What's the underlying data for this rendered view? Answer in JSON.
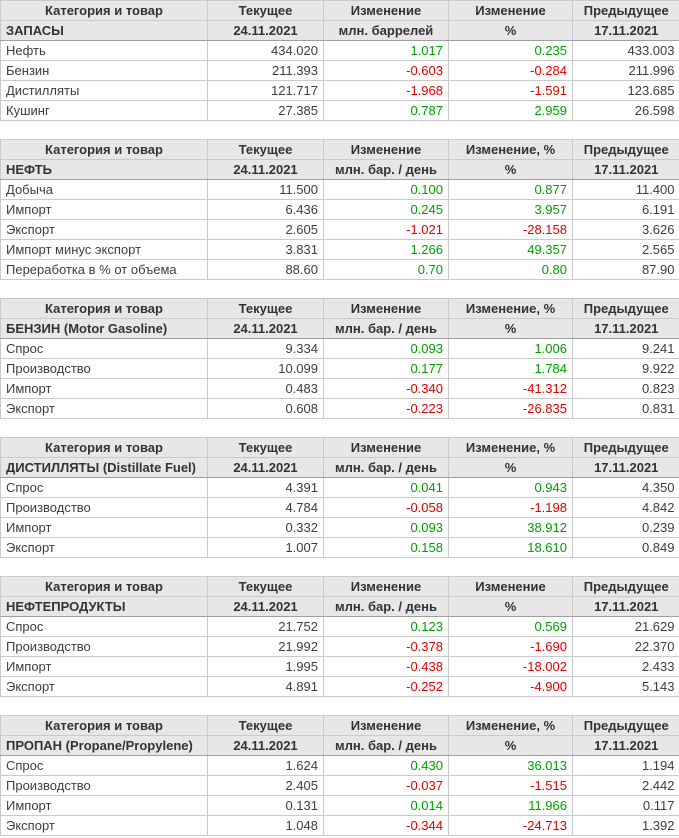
{
  "report": {
    "colors": {
      "positive": "#00a000",
      "negative": "#e00000",
      "header_background": "#e7e7e7",
      "grid": "#c9c9c9",
      "header_text": "#333333",
      "text": "#3d3d3d"
    },
    "current_date": "24.11.2021",
    "previous_date": "17.11.2021",
    "tables": [
      {
        "id": "stocks",
        "columns": [
          "Категория и товар",
          "Текущее",
          "Изменение",
          "Изменение",
          "Предыдущее"
        ],
        "subheader": [
          "ЗАПАСЫ",
          "24.11.2021",
          "млн. баррелей",
          "%",
          "17.11.2021"
        ],
        "rows": [
          [
            "Нефть",
            "434.020",
            "1.017",
            "0.235",
            "433.003"
          ],
          [
            "Бензин",
            "211.393",
            "-0.603",
            "-0.284",
            "211.996"
          ],
          [
            "Дистилляты",
            "121.717",
            "-1.968",
            "-1.591",
            "123.685"
          ],
          [
            "Кушинг",
            "27.385",
            "0.787",
            "2.959",
            "26.598"
          ]
        ]
      },
      {
        "id": "crude-oil",
        "columns": [
          "Категория и товар",
          "Текущее",
          "Изменение",
          "Изменение, %",
          "Предыдущее"
        ],
        "subheader": [
          "НЕФТЬ",
          "24.11.2021",
          "млн. бар. / день",
          "%",
          "17.11.2021"
        ],
        "rows": [
          [
            "Добыча",
            "11.500",
            "0.100",
            "0.877",
            "11.400"
          ],
          [
            "Импорт",
            "6.436",
            "0.245",
            "3.957",
            "6.191"
          ],
          [
            "Экспорт",
            "2.605",
            "-1.021",
            "-28.158",
            "3.626"
          ],
          [
            "Импорт минус экспорт",
            "3.831",
            "1.266",
            "49.357",
            "2.565"
          ],
          [
            "Переработка в % от объема",
            "88.60",
            "0.70",
            "0.80",
            "87.90"
          ]
        ]
      },
      {
        "id": "gasoline",
        "columns": [
          "Категория и товар",
          "Текущее",
          "Изменение",
          "Изменение, %",
          "Предыдущее"
        ],
        "subheader": [
          "БЕНЗИН (Motor Gasoline)",
          "24.11.2021",
          "млн. бар. / день",
          "%",
          "17.11.2021"
        ],
        "rows": [
          [
            "Спрос",
            "9.334",
            "0.093",
            "1.006",
            "9.241"
          ],
          [
            "Производство",
            "10.099",
            "0.177",
            "1.784",
            "9.922"
          ],
          [
            "Импорт",
            "0.483",
            "-0.340",
            "-41.312",
            "0.823"
          ],
          [
            "Экспорт",
            "0.608",
            "-0.223",
            "-26.835",
            "0.831"
          ]
        ]
      },
      {
        "id": "distillates",
        "columns": [
          "Категория и товар",
          "Текущее",
          "Изменение",
          "Изменение, %",
          "Предыдущее"
        ],
        "subheader": [
          "ДИСТИЛЛЯТЫ (Distillate Fuel)",
          "24.11.2021",
          "млн. бар. / день",
          "%",
          "17.11.2021"
        ],
        "rows": [
          [
            "Спрос",
            "4.391",
            "0.041",
            "0.943",
            "4.350"
          ],
          [
            "Производство",
            "4.784",
            "-0.058",
            "-1.198",
            "4.842"
          ],
          [
            "Импорт",
            "0.332",
            "0.093",
            "38.912",
            "0.239"
          ],
          [
            "Экспорт",
            "1.007",
            "0.158",
            "18.610",
            "0.849"
          ]
        ]
      },
      {
        "id": "petroleum-products",
        "columns": [
          "Категория и товар",
          "Текущее",
          "Изменение",
          "Изменение",
          "Предыдущее"
        ],
        "subheader": [
          "НЕФТЕПРОДУКТЫ",
          "24.11.2021",
          "млн. бар. / день",
          "%",
          "17.11.2021"
        ],
        "rows": [
          [
            "Спрос",
            "21.752",
            "0.123",
            "0.569",
            "21.629"
          ],
          [
            "Производство",
            "21.992",
            "-0.378",
            "-1.690",
            "22.370"
          ],
          [
            "Импорт",
            "1.995",
            "-0.438",
            "-18.002",
            "2.433"
          ],
          [
            "Экспорт",
            "4.891",
            "-0.252",
            "-4.900",
            "5.143"
          ]
        ]
      },
      {
        "id": "propane",
        "columns": [
          "Категория и товар",
          "Текущее",
          "Изменение",
          "Изменение, %",
          "Предыдущее"
        ],
        "subheader": [
          "ПРОПАН (Propane/Propylene)",
          "24.11.2021",
          "млн. бар. / день",
          "%",
          "17.11.2021"
        ],
        "rows": [
          [
            "Спрос",
            "1.624",
            "0.430",
            "36.013",
            "1.194"
          ],
          [
            "Производство",
            "2.405",
            "-0.037",
            "-1.515",
            "2.442"
          ],
          [
            "Импорт",
            "0.131",
            "0.014",
            "11.966",
            "0.117"
          ],
          [
            "Экспорт",
            "1.048",
            "-0.344",
            "-24.713",
            "1.392"
          ]
        ]
      }
    ]
  }
}
